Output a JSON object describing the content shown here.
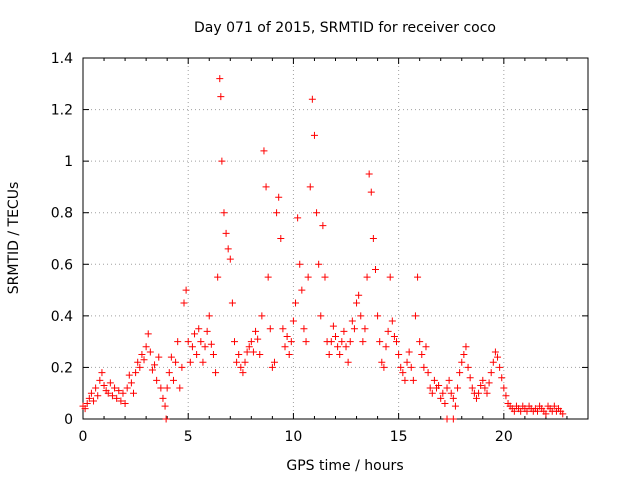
{
  "chart_data": {
    "type": "scatter",
    "title": "Day 071 of 2015, SRMTID for receiver coco",
    "xlabel": "GPS time / hours",
    "ylabel": "SRMTID / TECUs",
    "xlim": [
      0,
      24
    ],
    "ylim": [
      0,
      1.4
    ],
    "xticks": [
      0,
      5,
      10,
      15,
      20
    ],
    "xtick_labels": [
      "0",
      "5",
      "10",
      "15",
      "20"
    ],
    "yticks": [
      0,
      0.2,
      0.4,
      0.6,
      0.8,
      1.0,
      1.2,
      1.4
    ],
    "ytick_labels": [
      "0",
      "0.2",
      "0.4",
      "0.6",
      "0.8",
      "1",
      "1.2",
      "1.4"
    ],
    "grid": true,
    "marker": "+",
    "series_color": "#ff0000",
    "series": [
      {
        "name": "SRMTID",
        "points": [
          [
            0.0,
            0.05
          ],
          [
            0.1,
            0.04
          ],
          [
            0.2,
            0.06
          ],
          [
            0.3,
            0.08
          ],
          [
            0.4,
            0.1
          ],
          [
            0.5,
            0.07
          ],
          [
            0.6,
            0.12
          ],
          [
            0.7,
            0.09
          ],
          [
            0.8,
            0.15
          ],
          [
            0.9,
            0.18
          ],
          [
            1.0,
            0.13
          ],
          [
            1.1,
            0.11
          ],
          [
            1.2,
            0.1
          ],
          [
            1.3,
            0.14
          ],
          [
            1.4,
            0.09
          ],
          [
            1.5,
            0.12
          ],
          [
            1.6,
            0.08
          ],
          [
            1.7,
            0.11
          ],
          [
            1.8,
            0.07
          ],
          [
            1.9,
            0.1
          ],
          [
            2.0,
            0.06
          ],
          [
            2.1,
            0.12
          ],
          [
            2.2,
            0.17
          ],
          [
            2.3,
            0.14
          ],
          [
            2.4,
            0.1
          ],
          [
            2.5,
            0.18
          ],
          [
            2.6,
            0.22
          ],
          [
            2.7,
            0.2
          ],
          [
            2.8,
            0.25
          ],
          [
            2.9,
            0.23
          ],
          [
            3.0,
            0.28
          ],
          [
            3.1,
            0.33
          ],
          [
            3.2,
            0.26
          ],
          [
            3.3,
            0.19
          ],
          [
            3.4,
            0.21
          ],
          [
            3.5,
            0.15
          ],
          [
            3.6,
            0.24
          ],
          [
            3.7,
            0.12
          ],
          [
            3.8,
            0.08
          ],
          [
            3.9,
            0.05
          ],
          [
            4.0,
            0.12
          ],
          [
            4.1,
            0.18
          ],
          [
            4.2,
            0.24
          ],
          [
            4.3,
            0.15
          ],
          [
            4.4,
            0.22
          ],
          [
            4.5,
            0.3
          ],
          [
            4.6,
            0.12
          ],
          [
            4.7,
            0.2
          ],
          [
            4.8,
            0.45
          ],
          [
            4.9,
            0.5
          ],
          [
            5.0,
            0.3
          ],
          [
            5.1,
            0.22
          ],
          [
            5.2,
            0.28
          ],
          [
            5.3,
            0.33
          ],
          [
            5.4,
            0.25
          ],
          [
            5.5,
            0.35
          ],
          [
            5.6,
            0.3
          ],
          [
            5.7,
            0.22
          ],
          [
            5.8,
            0.28
          ],
          [
            5.9,
            0.34
          ],
          [
            6.0,
            0.4
          ],
          [
            6.1,
            0.29
          ],
          [
            6.2,
            0.25
          ],
          [
            6.3,
            0.18
          ],
          [
            6.4,
            0.55
          ],
          [
            6.5,
            1.32
          ],
          [
            6.55,
            1.25
          ],
          [
            6.6,
            1.0
          ],
          [
            6.7,
            0.8
          ],
          [
            6.8,
            0.72
          ],
          [
            6.9,
            0.66
          ],
          [
            7.0,
            0.62
          ],
          [
            7.1,
            0.45
          ],
          [
            7.2,
            0.3
          ],
          [
            7.3,
            0.22
          ],
          [
            7.4,
            0.25
          ],
          [
            7.5,
            0.2
          ],
          [
            7.6,
            0.18
          ],
          [
            7.7,
            0.22
          ],
          [
            7.8,
            0.26
          ],
          [
            7.9,
            0.28
          ],
          [
            8.0,
            0.3
          ],
          [
            8.1,
            0.26
          ],
          [
            8.2,
            0.34
          ],
          [
            8.3,
            0.31
          ],
          [
            8.4,
            0.25
          ],
          [
            8.5,
            0.4
          ],
          [
            8.6,
            1.04
          ],
          [
            8.7,
            0.9
          ],
          [
            8.8,
            0.55
          ],
          [
            8.9,
            0.35
          ],
          [
            9.0,
            0.2
          ],
          [
            9.1,
            0.22
          ],
          [
            9.2,
            0.8
          ],
          [
            9.3,
            0.86
          ],
          [
            9.4,
            0.7
          ],
          [
            9.5,
            0.35
          ],
          [
            9.6,
            0.28
          ],
          [
            9.7,
            0.32
          ],
          [
            9.8,
            0.25
          ],
          [
            9.9,
            0.3
          ],
          [
            10.0,
            0.38
          ],
          [
            10.1,
            0.45
          ],
          [
            10.2,
            0.78
          ],
          [
            10.3,
            0.6
          ],
          [
            10.4,
            0.5
          ],
          [
            10.5,
            0.35
          ],
          [
            10.6,
            0.3
          ],
          [
            10.7,
            0.55
          ],
          [
            10.8,
            0.9
          ],
          [
            10.9,
            1.24
          ],
          [
            11.0,
            1.1
          ],
          [
            11.1,
            0.8
          ],
          [
            11.2,
            0.6
          ],
          [
            11.3,
            0.4
          ],
          [
            11.4,
            0.75
          ],
          [
            11.5,
            0.55
          ],
          [
            11.6,
            0.3
          ],
          [
            11.7,
            0.25
          ],
          [
            11.8,
            0.3
          ],
          [
            11.9,
            0.36
          ],
          [
            12.0,
            0.32
          ],
          [
            12.1,
            0.28
          ],
          [
            12.2,
            0.25
          ],
          [
            12.3,
            0.3
          ],
          [
            12.4,
            0.34
          ],
          [
            12.5,
            0.28
          ],
          [
            12.6,
            0.22
          ],
          [
            12.7,
            0.3
          ],
          [
            12.8,
            0.38
          ],
          [
            12.9,
            0.35
          ],
          [
            13.0,
            0.45
          ],
          [
            13.1,
            0.48
          ],
          [
            13.2,
            0.4
          ],
          [
            13.3,
            0.3
          ],
          [
            13.4,
            0.35
          ],
          [
            13.5,
            0.55
          ],
          [
            13.6,
            0.95
          ],
          [
            13.7,
            0.88
          ],
          [
            13.8,
            0.7
          ],
          [
            13.9,
            0.58
          ],
          [
            14.0,
            0.4
          ],
          [
            14.1,
            0.3
          ],
          [
            14.2,
            0.22
          ],
          [
            14.3,
            0.2
          ],
          [
            14.4,
            0.28
          ],
          [
            14.5,
            0.34
          ],
          [
            14.6,
            0.55
          ],
          [
            14.7,
            0.38
          ],
          [
            14.8,
            0.32
          ],
          [
            14.9,
            0.3
          ],
          [
            15.0,
            0.25
          ],
          [
            15.1,
            0.2
          ],
          [
            15.2,
            0.18
          ],
          [
            15.3,
            0.15
          ],
          [
            15.4,
            0.22
          ],
          [
            15.5,
            0.26
          ],
          [
            15.6,
            0.2
          ],
          [
            15.7,
            0.15
          ],
          [
            15.8,
            0.4
          ],
          [
            15.9,
            0.55
          ],
          [
            16.0,
            0.3
          ],
          [
            16.1,
            0.25
          ],
          [
            16.2,
            0.2
          ],
          [
            16.3,
            0.28
          ],
          [
            16.4,
            0.18
          ],
          [
            16.5,
            0.12
          ],
          [
            16.6,
            0.1
          ],
          [
            16.7,
            0.15
          ],
          [
            16.8,
            0.12
          ],
          [
            16.9,
            0.13
          ],
          [
            17.0,
            0.08
          ],
          [
            17.1,
            0.1
          ],
          [
            17.2,
            0.06
          ],
          [
            17.3,
            0.12
          ],
          [
            17.4,
            0.15
          ],
          [
            17.5,
            0.1
          ],
          [
            17.6,
            0.08
          ],
          [
            17.7,
            0.05
          ],
          [
            17.8,
            0.12
          ],
          [
            17.9,
            0.18
          ],
          [
            18.0,
            0.22
          ],
          [
            18.1,
            0.25
          ],
          [
            18.2,
            0.28
          ],
          [
            18.3,
            0.2
          ],
          [
            18.4,
            0.16
          ],
          [
            18.5,
            0.12
          ],
          [
            18.6,
            0.1
          ],
          [
            18.7,
            0.08
          ],
          [
            18.8,
            0.1
          ],
          [
            18.9,
            0.13
          ],
          [
            19.0,
            0.15
          ],
          [
            19.1,
            0.12
          ],
          [
            19.2,
            0.1
          ],
          [
            19.3,
            0.14
          ],
          [
            19.4,
            0.18
          ],
          [
            19.5,
            0.22
          ],
          [
            19.6,
            0.26
          ],
          [
            19.7,
            0.24
          ],
          [
            19.8,
            0.2
          ],
          [
            19.9,
            0.16
          ],
          [
            20.0,
            0.12
          ],
          [
            20.1,
            0.09
          ],
          [
            20.2,
            0.06
          ],
          [
            20.3,
            0.05
          ],
          [
            20.4,
            0.04
          ],
          [
            20.5,
            0.03
          ],
          [
            20.6,
            0.05
          ],
          [
            20.7,
            0.04
          ],
          [
            20.8,
            0.03
          ],
          [
            20.9,
            0.05
          ],
          [
            21.0,
            0.04
          ],
          [
            21.1,
            0.03
          ],
          [
            21.2,
            0.05
          ],
          [
            21.3,
            0.04
          ],
          [
            21.4,
            0.03
          ],
          [
            21.5,
            0.04
          ],
          [
            21.6,
            0.03
          ],
          [
            21.7,
            0.05
          ],
          [
            21.8,
            0.04
          ],
          [
            21.9,
            0.03
          ],
          [
            22.0,
            0.02
          ],
          [
            22.1,
            0.05
          ],
          [
            22.2,
            0.04
          ],
          [
            22.3,
            0.03
          ],
          [
            22.4,
            0.05
          ],
          [
            22.5,
            0.03
          ],
          [
            22.6,
            0.04
          ],
          [
            22.7,
            0.03
          ],
          [
            22.8,
            0.02
          ],
          [
            3.95,
            0.0
          ],
          [
            17.3,
            0.0
          ],
          [
            17.6,
            0.0
          ]
        ]
      }
    ]
  }
}
